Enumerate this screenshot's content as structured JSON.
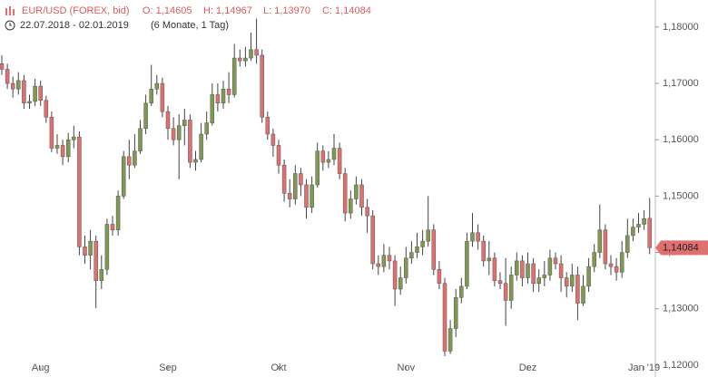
{
  "header": {
    "title": "EUR/USD (FOREX, bid)",
    "ohlc": [
      "O: 1,14605",
      "H: 1,14967",
      "L: 1,13970",
      "C: 1,14084"
    ],
    "range": "22.07.2018 - 02.01.2019",
    "period": "(6 Monate, 1 Tag)"
  },
  "chart_data": {
    "type": "candlestick",
    "up_color": "#7f9a50",
    "down_color": "#e07070",
    "grid": false,
    "ylim": [
      1.1179,
      1.1848
    ],
    "yticks": [
      {
        "value": 1.12,
        "label": "1,12000"
      },
      {
        "value": 1.13,
        "label": "1,13000"
      },
      {
        "value": 1.14,
        "label": "1,14000"
      },
      {
        "value": 1.15,
        "label": "1,15000"
      },
      {
        "value": 1.16,
        "label": "1,16000"
      },
      {
        "value": 1.17,
        "label": "1,17000"
      },
      {
        "value": 1.18,
        "label": "1,18000"
      }
    ],
    "last_value": {
      "value": 1.14084,
      "label": "1,14084"
    },
    "categories": [
      null,
      null,
      null,
      null,
      null,
      null,
      null,
      "Aug",
      null,
      null,
      null,
      null,
      null,
      null,
      null,
      null,
      null,
      null,
      null,
      null,
      null,
      null,
      null,
      null,
      null,
      null,
      null,
      null,
      null,
      null,
      "Sep",
      null,
      null,
      null,
      null,
      null,
      null,
      null,
      null,
      null,
      null,
      null,
      null,
      null,
      null,
      null,
      null,
      null,
      null,
      null,
      "Okt",
      null,
      null,
      null,
      null,
      null,
      null,
      null,
      null,
      null,
      null,
      null,
      null,
      null,
      null,
      null,
      null,
      null,
      null,
      null,
      null,
      null,
      null,
      "Nov",
      null,
      null,
      null,
      null,
      null,
      null,
      null,
      null,
      null,
      null,
      null,
      null,
      null,
      null,
      null,
      null,
      null,
      null,
      null,
      null,
      null,
      "Dez",
      null,
      null,
      null,
      null,
      null,
      null,
      null,
      null,
      null,
      null,
      null,
      null,
      null,
      null,
      null,
      null,
      null,
      null,
      null,
      null,
      "Jan '19",
      null
    ],
    "open": [
      1.1735,
      1.1725,
      1.17,
      1.169,
      1.1705,
      1.1665,
      1.1668,
      1.1695,
      1.167,
      1.164,
      1.1585,
      1.159,
      1.157,
      1.16,
      1.1605,
      1.141,
      1.1395,
      1.142,
      1.135,
      1.137,
      1.145,
      1.144,
      1.15,
      1.157,
      1.1555,
      1.158,
      1.162,
      1.1665,
      1.169,
      1.17,
      1.165,
      1.162,
      1.16,
      1.1625,
      1.1635,
      1.156,
      1.1565,
      1.161,
      1.163,
      1.168,
      1.1665,
      1.169,
      1.168,
      1.1745,
      1.174,
      1.1745,
      1.176,
      1.175,
      1.164,
      1.161,
      1.159,
      1.1555,
      1.1505,
      1.1495,
      1.154,
      1.152,
      1.148,
      1.152,
      1.158,
      1.156,
      1.1565,
      1.1585,
      1.154,
      1.147,
      1.1495,
      1.152,
      1.148,
      1.1465,
      1.138,
      1.1375,
      1.1395,
      1.1385,
      1.1335,
      1.1355,
      1.139,
      1.14,
      1.141,
      1.142,
      1.144,
      1.137,
      1.1345,
      1.1225,
      1.1265,
      1.132,
      1.134,
      1.142,
      1.1435,
      1.142,
      1.1385,
      1.139,
      1.135,
      1.1345,
      1.1315,
      1.136,
      1.1385,
      1.1355,
      1.138,
      1.1345,
      1.1355,
      1.136,
      1.139,
      1.138,
      1.1355,
      1.134,
      1.136,
      1.131,
      1.134,
      1.1375,
      1.14,
      1.144,
      1.138,
      1.1375,
      1.1365,
      1.14,
      1.143,
      1.1445,
      1.145,
      1.14605
    ],
    "high": [
      1.175,
      1.1735,
      1.1712,
      1.172,
      1.1715,
      1.168,
      1.1708,
      1.1705,
      1.1678,
      1.165,
      1.161,
      1.16,
      1.1612,
      1.1625,
      1.1615,
      1.143,
      1.144,
      1.143,
      1.1395,
      1.146,
      1.1465,
      1.151,
      1.158,
      1.16,
      1.161,
      1.1635,
      1.168,
      1.1733,
      1.1715,
      1.171,
      1.166,
      1.164,
      1.1645,
      1.1655,
      1.1645,
      1.158,
      1.163,
      1.165,
      1.17,
      1.17,
      1.1705,
      1.172,
      1.177,
      1.176,
      1.1765,
      1.179,
      1.1815,
      1.176,
      1.165,
      1.162,
      1.16,
      1.1565,
      1.153,
      1.1555,
      1.155,
      1.153,
      1.1535,
      1.1595,
      1.159,
      1.158,
      1.161,
      1.1595,
      1.155,
      1.151,
      1.1535,
      1.153,
      1.1495,
      1.1475,
      1.1395,
      1.1415,
      1.141,
      1.1395,
      1.1375,
      1.141,
      1.142,
      1.1435,
      1.144,
      1.15,
      1.145,
      1.1385,
      1.1355,
      1.128,
      1.1335,
      1.1355,
      1.1435,
      1.147,
      1.145,
      1.143,
      1.142,
      1.14,
      1.1365,
      1.139,
      1.1375,
      1.14,
      1.1395,
      1.14,
      1.139,
      1.137,
      1.1385,
      1.1405,
      1.14,
      1.1395,
      1.1365,
      1.138,
      1.1375,
      1.136,
      1.139,
      1.1415,
      1.1485,
      1.145,
      1.1395,
      1.139,
      1.142,
      1.146,
      1.146,
      1.147,
      1.1475,
      1.14967
    ],
    "low": [
      1.1715,
      1.169,
      1.1675,
      1.168,
      1.1655,
      1.1655,
      1.166,
      1.166,
      1.163,
      1.1578,
      1.1575,
      1.1555,
      1.156,
      1.1585,
      1.1395,
      1.138,
      1.137,
      1.1301,
      1.1335,
      1.136,
      1.143,
      1.143,
      1.1495,
      1.153,
      1.155,
      1.1575,
      1.161,
      1.166,
      1.168,
      1.164,
      1.16,
      1.159,
      1.153,
      1.159,
      1.155,
      1.1545,
      1.156,
      1.16,
      1.1625,
      1.165,
      1.1655,
      1.1665,
      1.1675,
      1.173,
      1.173,
      1.174,
      1.1735,
      1.163,
      1.16,
      1.157,
      1.154,
      1.149,
      1.148,
      1.1485,
      1.15,
      1.146,
      1.147,
      1.1515,
      1.1545,
      1.155,
      1.1555,
      1.153,
      1.1455,
      1.146,
      1.1485,
      1.1465,
      1.1435,
      1.137,
      1.136,
      1.1365,
      1.137,
      1.1305,
      1.1325,
      1.1345,
      1.138,
      1.139,
      1.1395,
      1.141,
      1.136,
      1.1335,
      1.1216,
      1.122,
      1.125,
      1.131,
      1.1335,
      1.141,
      1.1405,
      1.1375,
      1.136,
      1.134,
      1.1335,
      1.127,
      1.13,
      1.135,
      1.134,
      1.1345,
      1.133,
      1.133,
      1.134,
      1.135,
      1.137,
      1.133,
      1.132,
      1.133,
      1.128,
      1.1305,
      1.133,
      1.1365,
      1.139,
      1.137,
      1.136,
      1.135,
      1.1355,
      1.139,
      1.142,
      1.1435,
      1.144,
      1.1397
    ],
    "close": [
      1.1725,
      1.17,
      1.169,
      1.1705,
      1.1665,
      1.1668,
      1.1695,
      1.167,
      1.164,
      1.1585,
      1.159,
      1.157,
      1.16,
      1.1605,
      1.141,
      1.1395,
      1.142,
      1.135,
      1.137,
      1.145,
      1.144,
      1.15,
      1.157,
      1.1555,
      1.158,
      1.162,
      1.1665,
      1.169,
      1.17,
      1.165,
      1.162,
      1.16,
      1.1625,
      1.1635,
      1.156,
      1.1565,
      1.161,
      1.163,
      1.168,
      1.1665,
      1.169,
      1.168,
      1.1745,
      1.174,
      1.1745,
      1.176,
      1.175,
      1.164,
      1.161,
      1.159,
      1.1555,
      1.1505,
      1.1495,
      1.154,
      1.152,
      1.148,
      1.152,
      1.158,
      1.156,
      1.1565,
      1.1585,
      1.154,
      1.147,
      1.1495,
      1.152,
      1.148,
      1.1465,
      1.138,
      1.1375,
      1.1395,
      1.1385,
      1.1335,
      1.1355,
      1.139,
      1.14,
      1.141,
      1.142,
      1.144,
      1.137,
      1.1345,
      1.1225,
      1.1265,
      1.132,
      1.134,
      1.142,
      1.1435,
      1.142,
      1.1385,
      1.139,
      1.135,
      1.1345,
      1.1315,
      1.136,
      1.1385,
      1.1355,
      1.138,
      1.1345,
      1.1355,
      1.136,
      1.139,
      1.138,
      1.1355,
      1.134,
      1.136,
      1.131,
      1.134,
      1.1375,
      1.14,
      1.144,
      1.138,
      1.1375,
      1.1365,
      1.14,
      1.143,
      1.1445,
      1.145,
      1.146,
      1.14084
    ]
  }
}
